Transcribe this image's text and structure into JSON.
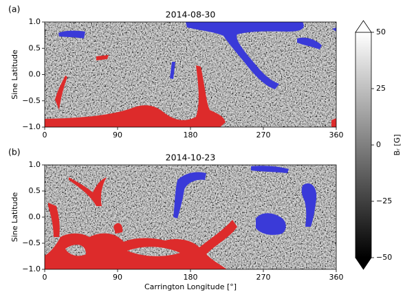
{
  "chart_data": [
    {
      "type": "map",
      "panel_label": "(a)",
      "title": "2014-08-30",
      "ylabel": "Sine Latitude",
      "xlim": [
        0,
        360
      ],
      "ylim": [
        -1,
        1
      ],
      "xticks": [
        0,
        90,
        180,
        270,
        360
      ],
      "yticks": [
        {
          "value": 1,
          "label": "1.0"
        },
        {
          "value": 0.5,
          "label": "0.5"
        },
        {
          "value": 0,
          "label": "0.0"
        },
        {
          "value": -0.5,
          "label": "−0.5"
        },
        {
          "value": -1,
          "label": "−1.0"
        }
      ]
    },
    {
      "type": "map",
      "panel_label": "(b)",
      "title": "2014-10-23",
      "ylabel": "Sine Latitude",
      "xlabel": "Carrington Longitude [°]",
      "xlim": [
        0,
        360
      ],
      "ylim": [
        -1,
        1
      ],
      "xticks": [
        0,
        90,
        180,
        270,
        360
      ],
      "yticks": [
        {
          "value": 1,
          "label": "1.0"
        },
        {
          "value": 0.5,
          "label": "0.5"
        },
        {
          "value": 0,
          "label": "0.0"
        },
        {
          "value": -0.5,
          "label": "−0.5"
        },
        {
          "value": -1,
          "label": "−1.0"
        }
      ]
    }
  ],
  "colorbar": {
    "label": "Bᵣ [G]",
    "lim": [
      -50,
      50
    ],
    "ticks": [
      50,
      25,
      0,
      {
        "value": -25,
        "label": "−25"
      },
      {
        "value": -50,
        "label": "−50"
      }
    ]
  }
}
